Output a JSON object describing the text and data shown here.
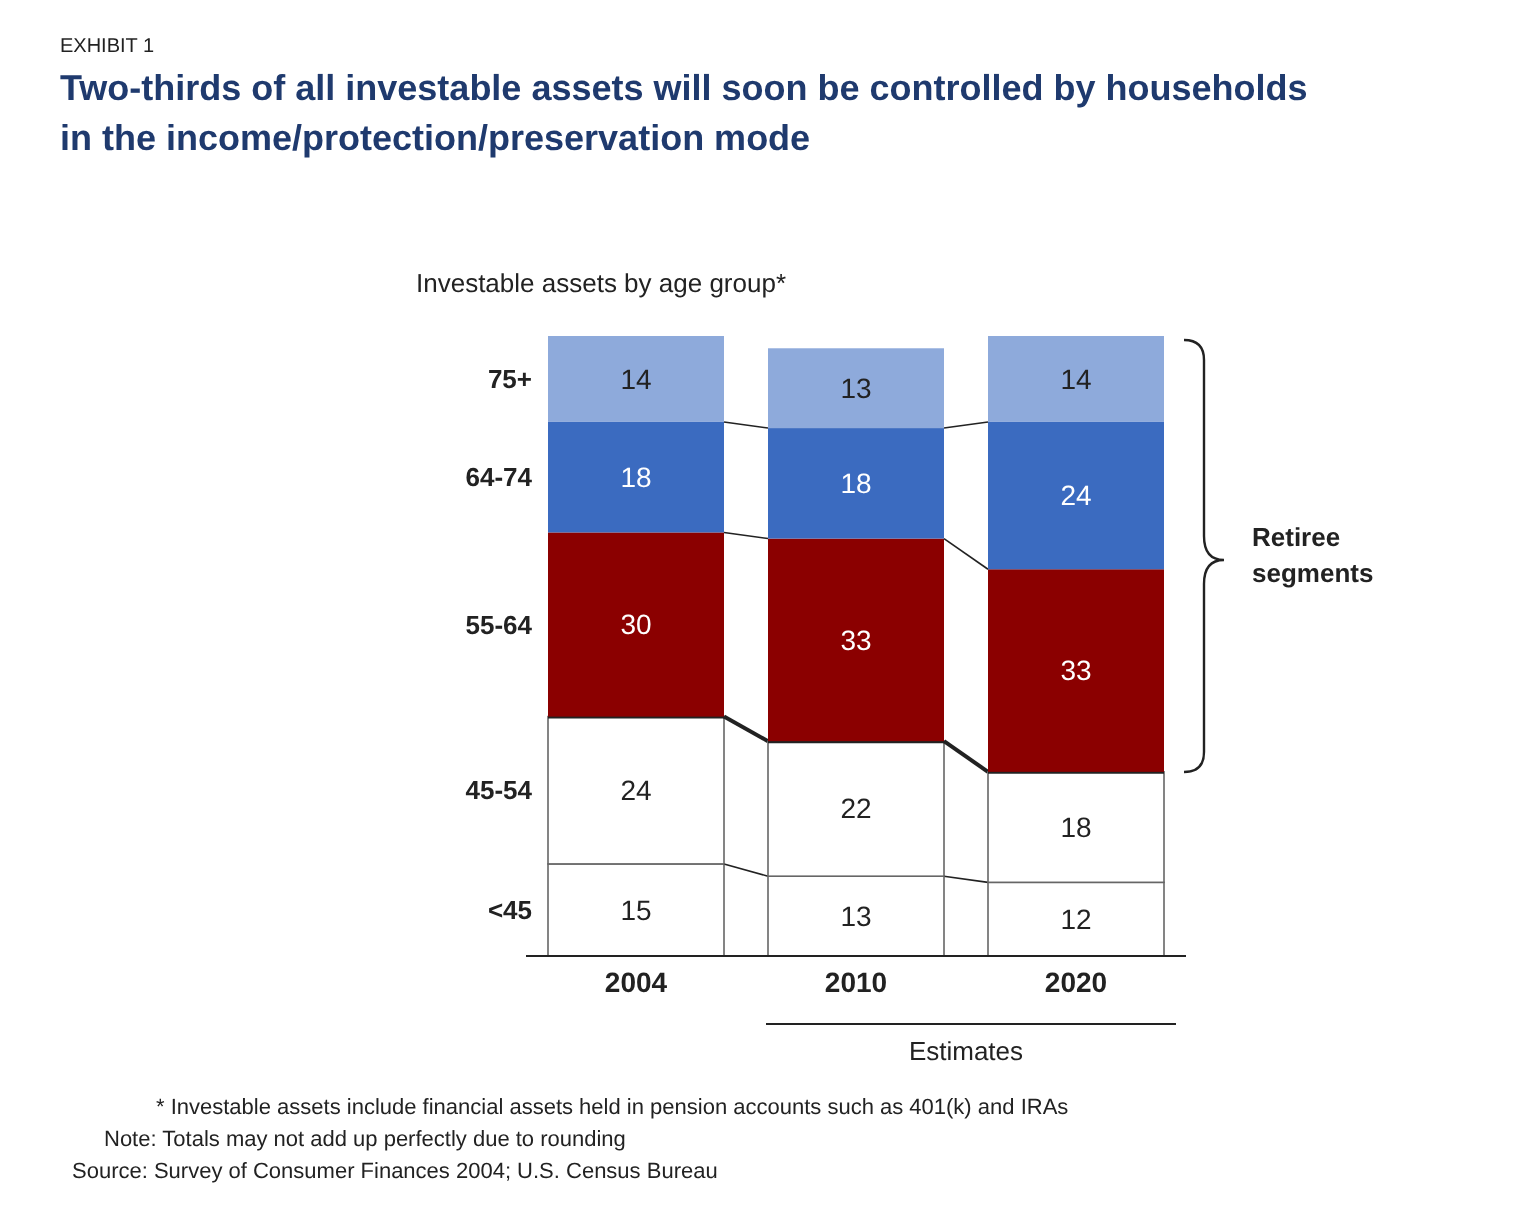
{
  "chart_data": {
    "type": "bar",
    "stacked": true,
    "data_labels": true,
    "legend": false,
    "grid": false,
    "title": "Two-thirds of all investable assets will soon be controlled by households in the income/protection/preservation mode",
    "subtitle": "Investable assets by age group*",
    "categories": [
      "2004",
      "2010",
      "2020"
    ],
    "series": [
      {
        "name": "<45",
        "color": "#ffffff",
        "values": [
          15,
          13,
          12
        ]
      },
      {
        "name": "45-54",
        "color": "#ffffff",
        "values": [
          24,
          22,
          18
        ]
      },
      {
        "name": "55-64",
        "color": "#8b0000",
        "values": [
          30,
          33,
          33
        ]
      },
      {
        "name": "64-74",
        "color": "#3b6bc0",
        "values": [
          18,
          18,
          24
        ]
      },
      {
        "name": "75+",
        "color": "#8eaadb",
        "values": [
          14,
          13,
          14
        ]
      }
    ],
    "annotations": [
      "EXHIBIT 1",
      "Estimates",
      "Retiree segments",
      "* Investable assets include financial assets held in pension accounts such as 401(k) and IRAs",
      "Note: Totals may not add up perfectly due to rounding",
      "Source: Survey of Consumer Finances 2004; U.S. Census Bureau"
    ]
  }
}
